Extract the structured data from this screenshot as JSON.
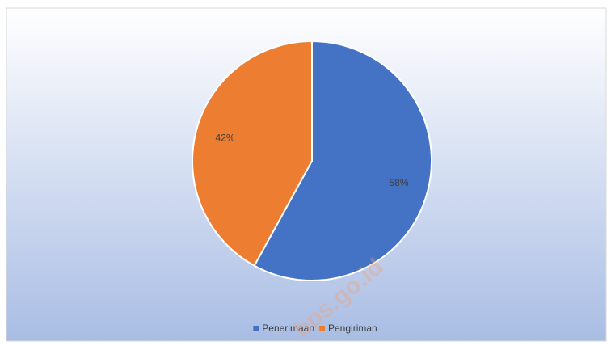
{
  "chart_data": {
    "type": "pie",
    "categories": [
      "Penerimaan",
      "Pengiriman"
    ],
    "values": [
      58,
      42
    ],
    "value_labels": [
      "58%",
      "42%"
    ],
    "colors": [
      "#4472c4",
      "#ed7d31"
    ],
    "legend": "bottom",
    "watermark": "bps.go.id"
  }
}
